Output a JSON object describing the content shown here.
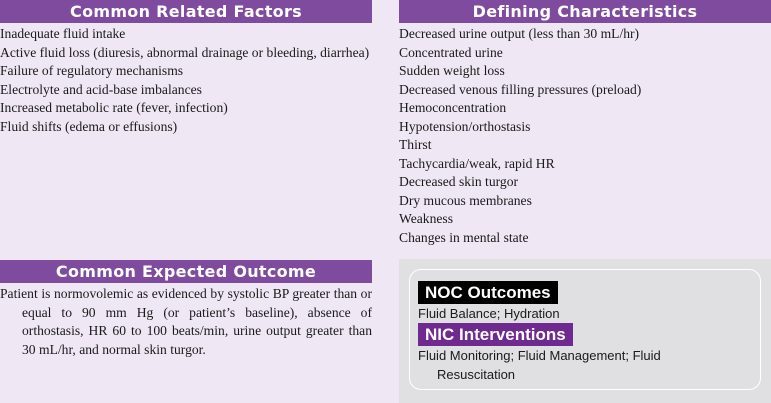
{
  "related_factors": {
    "title": "Common Related Factors",
    "items": [
      "Inadequate fluid intake",
      "Active fluid loss (diuresis, abnormal drainage or bleeding, diarrhea)",
      "Failure of regulatory mechanisms",
      "Electrolyte and acid-base imbalances",
      "Increased metabolic rate (fever, infection)",
      "Fluid shifts (edema or effusions)"
    ]
  },
  "defining_characteristics": {
    "title": "Defining Characteristics",
    "items": [
      "Decreased urine output (less than 30 mL/hr)",
      "Concentrated urine",
      "Sudden weight loss",
      "Decreased venous filling pressures (preload)",
      "Hemoconcentration",
      "Hypotension/orthostasis",
      "Thirst",
      "Tachycardia/weak, rapid HR",
      "Decreased skin turgor",
      "Dry mucous membranes",
      "Weakness",
      "Changes in mental state"
    ]
  },
  "expected_outcome": {
    "title": "Common Expected Outcome",
    "text": "Patient is normovolemic as evidenced by systolic BP greater than or equal to 90 mm Hg (or patient’s baseline), absence of orthostasis, HR 60 to 100 beats/min, urine output greater than 30 mL/hr, and normal skin turgor."
  },
  "noc": {
    "title": "NOC Outcomes",
    "text": "Fluid Balance; Hydration"
  },
  "nic": {
    "title": "NIC Interventions",
    "text": "Fluid Monitoring; Fluid Management; Fluid Resuscitation"
  },
  "colors": {
    "header_purple": "#7f4b9e",
    "background": "#efe7f4",
    "noc_black": "#000000",
    "nic_purple": "#6e2a8e",
    "box_gray": "#e0e0e2"
  }
}
